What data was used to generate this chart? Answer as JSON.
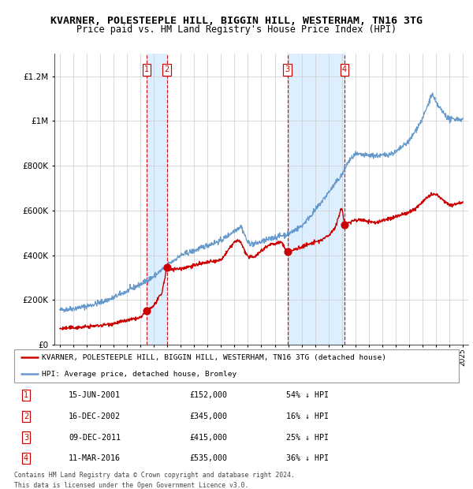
{
  "title": "KVARNER, POLESTEEPLE HILL, BIGGIN HILL, WESTERHAM, TN16 3TG",
  "subtitle": "Price paid vs. HM Land Registry's House Price Index (HPI)",
  "legend_line1": "KVARNER, POLESTEEPLE HILL, BIGGIN HILL, WESTERHAM, TN16 3TG (detached house)",
  "legend_line2": "HPI: Average price, detached house, Bromley",
  "footer_line1": "Contains HM Land Registry data © Crown copyright and database right 2024.",
  "footer_line2": "This data is licensed under the Open Government Licence v3.0.",
  "sales": [
    {
      "num": 1,
      "date": "15-JUN-2001",
      "price": 152000,
      "hpi_pct": "54% ↓ HPI"
    },
    {
      "num": 2,
      "date": "16-DEC-2002",
      "price": 345000,
      "hpi_pct": "16% ↓ HPI"
    },
    {
      "num": 3,
      "date": "09-DEC-2011",
      "price": 415000,
      "hpi_pct": "25% ↓ HPI"
    },
    {
      "num": 4,
      "date": "11-MAR-2016",
      "price": 535000,
      "hpi_pct": "36% ↓ HPI"
    }
  ],
  "sale_dates_decimal": [
    2001.46,
    2002.96,
    2011.94,
    2016.19
  ],
  "sale_prices": [
    152000,
    345000,
    415000,
    535000
  ],
  "vline_pairs": [
    [
      2001.46,
      2002.96
    ],
    [
      2011.94,
      2016.19
    ]
  ],
  "ylim": [
    0,
    1300000
  ],
  "xlim_start": 1994.6,
  "xlim_end": 2025.4,
  "red_color": "#cc0000",
  "blue_color": "#6699cc",
  "shade_color": "#ddeeff",
  "grid_color": "#cccccc",
  "bg_color": "#ffffff",
  "title_fontsize": 9.5,
  "subtitle_fontsize": 8.5,
  "hpi_anchors": [
    [
      1995.0,
      155000
    ],
    [
      1996.0,
      162000
    ],
    [
      1997.0,
      172000
    ],
    [
      1998.0,
      188000
    ],
    [
      1999.0,
      210000
    ],
    [
      2000.0,
      240000
    ],
    [
      2001.0,
      270000
    ],
    [
      2002.0,
      305000
    ],
    [
      2003.0,
      355000
    ],
    [
      2004.0,
      400000
    ],
    [
      2005.0,
      420000
    ],
    [
      2006.0,
      445000
    ],
    [
      2007.0,
      465000
    ],
    [
      2008.0,
      510000
    ],
    [
      2008.5,
      530000
    ],
    [
      2009.0,
      455000
    ],
    [
      2009.5,
      450000
    ],
    [
      2010.0,
      460000
    ],
    [
      2011.0,
      480000
    ],
    [
      2012.0,
      495000
    ],
    [
      2013.0,
      530000
    ],
    [
      2014.0,
      600000
    ],
    [
      2015.0,
      680000
    ],
    [
      2016.0,
      760000
    ],
    [
      2016.5,
      820000
    ],
    [
      2017.0,
      850000
    ],
    [
      2018.0,
      845000
    ],
    [
      2019.0,
      845000
    ],
    [
      2020.0,
      860000
    ],
    [
      2021.0,
      910000
    ],
    [
      2022.0,
      1010000
    ],
    [
      2022.7,
      1120000
    ],
    [
      2023.0,
      1080000
    ],
    [
      2023.5,
      1040000
    ],
    [
      2024.0,
      1005000
    ],
    [
      2024.5,
      1010000
    ],
    [
      2025.0,
      1005000
    ]
  ],
  "prop_anchors": [
    [
      1995.0,
      72000
    ],
    [
      1996.0,
      76000
    ],
    [
      1997.0,
      80000
    ],
    [
      1998.0,
      86000
    ],
    [
      1999.0,
      95000
    ],
    [
      2000.0,
      108000
    ],
    [
      2001.0,
      120000
    ],
    [
      2001.46,
      152000
    ],
    [
      2001.55,
      152000
    ],
    [
      2002.0,
      175000
    ],
    [
      2002.6,
      230000
    ],
    [
      2002.96,
      345000
    ],
    [
      2003.1,
      342000
    ],
    [
      2003.5,
      338000
    ],
    [
      2004.0,
      340000
    ],
    [
      2005.0,
      355000
    ],
    [
      2006.0,
      368000
    ],
    [
      2007.0,
      378000
    ],
    [
      2008.0,
      460000
    ],
    [
      2008.4,
      465000
    ],
    [
      2009.0,
      390000
    ],
    [
      2009.5,
      395000
    ],
    [
      2010.0,
      420000
    ],
    [
      2010.5,
      445000
    ],
    [
      2011.0,
      452000
    ],
    [
      2011.5,
      458000
    ],
    [
      2011.94,
      415000
    ],
    [
      2012.1,
      418000
    ],
    [
      2012.5,
      425000
    ],
    [
      2013.0,
      438000
    ],
    [
      2013.5,
      448000
    ],
    [
      2014.0,
      458000
    ],
    [
      2014.5,
      468000
    ],
    [
      2015.0,
      488000
    ],
    [
      2015.5,
      525000
    ],
    [
      2016.0,
      615000
    ],
    [
      2016.19,
      535000
    ],
    [
      2016.4,
      542000
    ],
    [
      2016.8,
      552000
    ],
    [
      2017.0,
      558000
    ],
    [
      2017.5,
      558000
    ],
    [
      2018.0,
      550000
    ],
    [
      2018.5,
      545000
    ],
    [
      2019.0,
      555000
    ],
    [
      2019.5,
      562000
    ],
    [
      2020.0,
      572000
    ],
    [
      2020.5,
      582000
    ],
    [
      2021.0,
      592000
    ],
    [
      2021.5,
      610000
    ],
    [
      2022.0,
      640000
    ],
    [
      2022.5,
      665000
    ],
    [
      2023.0,
      672000
    ],
    [
      2023.3,
      658000
    ],
    [
      2023.8,
      632000
    ],
    [
      2024.2,
      622000
    ],
    [
      2024.7,
      635000
    ],
    [
      2025.0,
      638000
    ]
  ]
}
